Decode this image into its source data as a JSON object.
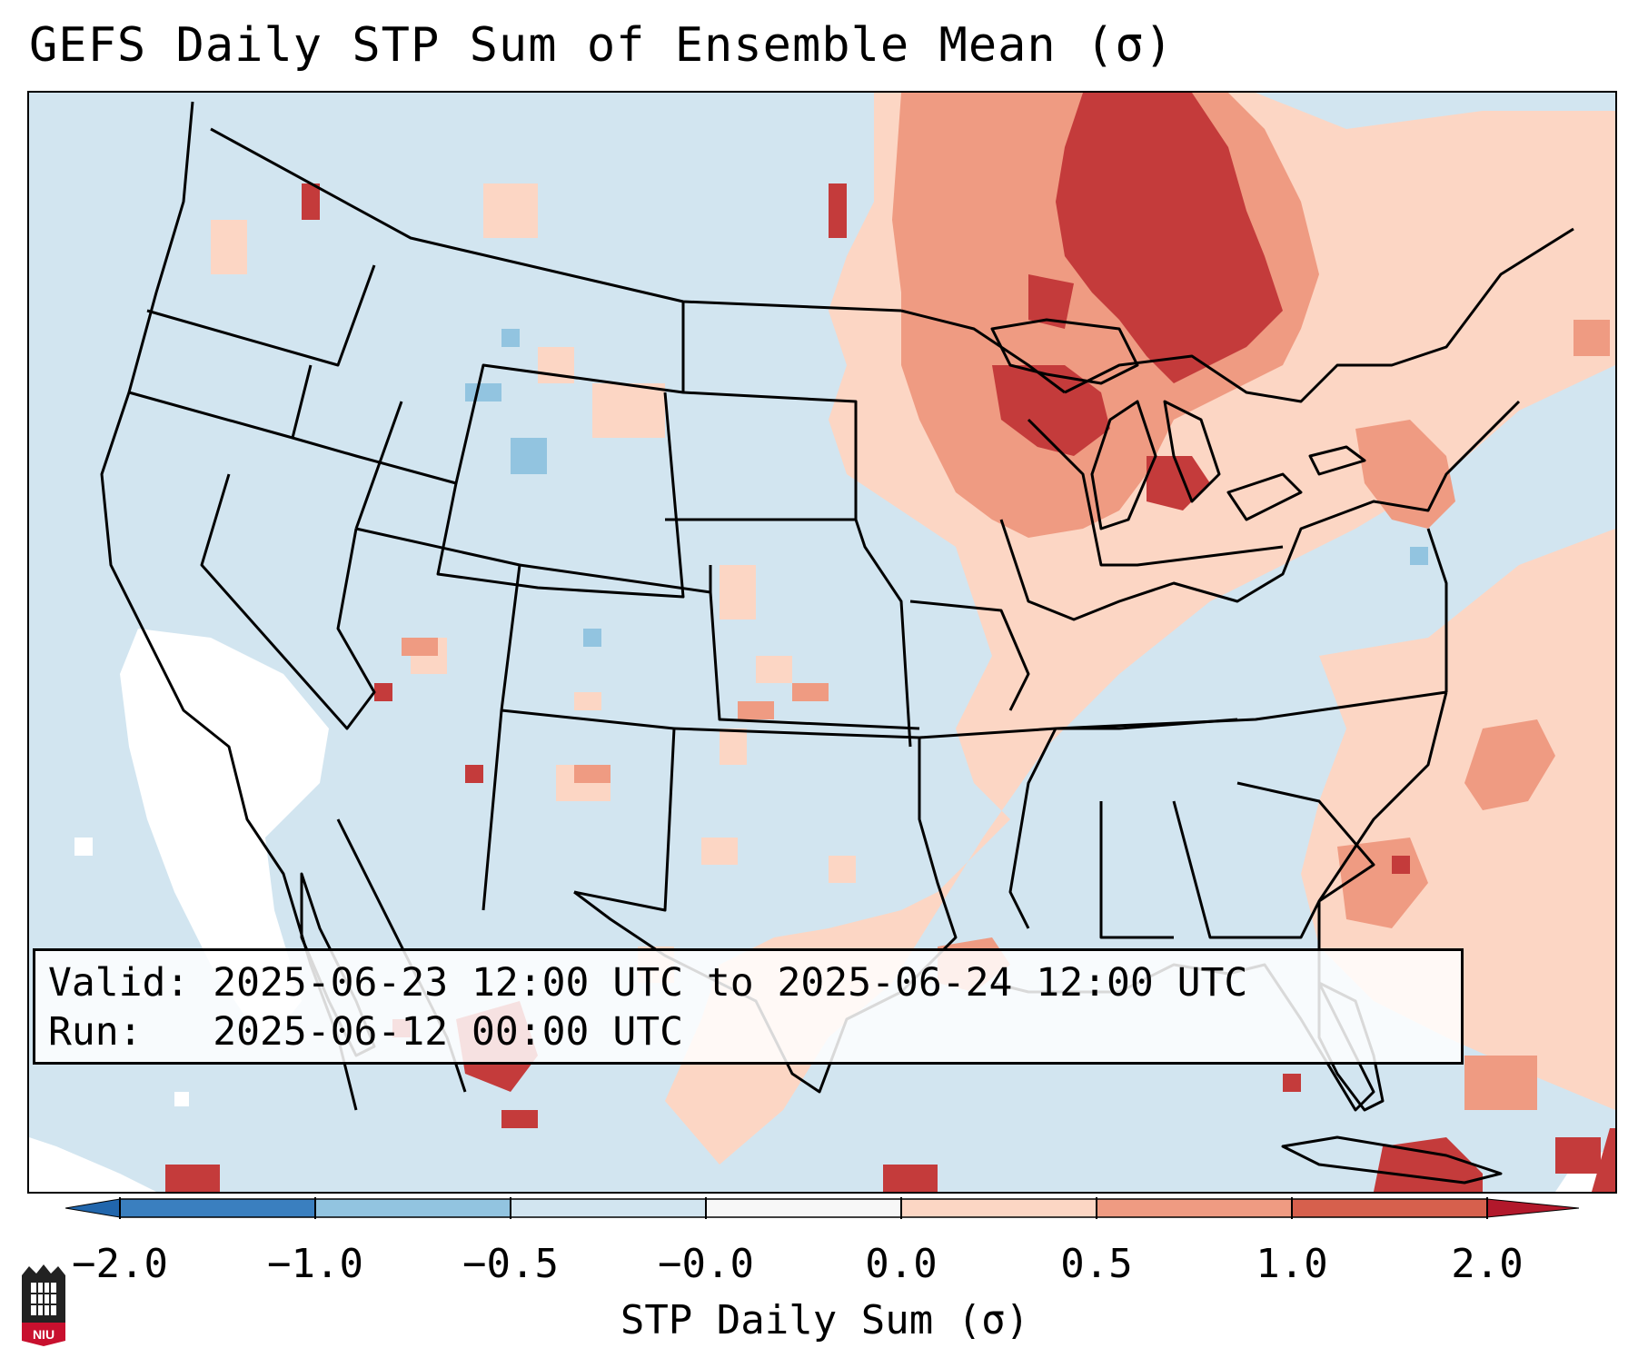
{
  "title": "GEFS Daily STP Sum of Ensemble Mean (σ)",
  "info": {
    "valid_line": "Valid: 2025-06-23 12:00 UTC to 2025-06-24 12:00 UTC",
    "run_line": "Run:   2025-06-12 00:00 UTC"
  },
  "colorbar": {
    "label": "STP Daily Sum (σ)",
    "ticks": [
      "−2.0",
      "−1.0",
      "−0.5",
      "−0.0",
      "0.0",
      "0.5",
      "1.0",
      "2.0"
    ],
    "colors": [
      "#3a7fbf",
      "#92c4e0",
      "#d2e5f0",
      "#ffffff",
      "#fcd6c4",
      "#ef9b82",
      "#d6604d",
      "#b2182b"
    ]
  },
  "logo": {
    "text": "NIU"
  },
  "map": {
    "ocean_color": "#d2e5f0",
    "anomaly_regions": [
      {
        "name": "upper-great-lakes-canada",
        "level": 2
      },
      {
        "name": "ontario-quebec-border",
        "level": 2
      },
      {
        "name": "michigan",
        "level": 1
      },
      {
        "name": "wisconsin",
        "level": 1
      },
      {
        "name": "ohio-valley",
        "level": 0.5
      },
      {
        "name": "new-york-new-england",
        "level": 1
      },
      {
        "name": "western-atlantic",
        "level": 0.5
      },
      {
        "name": "gulf-coast",
        "level": 0.5
      },
      {
        "name": "northern-mexico",
        "level": 2
      },
      {
        "name": "cuba",
        "level": 2
      },
      {
        "name": "california-baja-offshore",
        "level": -0.0
      }
    ]
  }
}
